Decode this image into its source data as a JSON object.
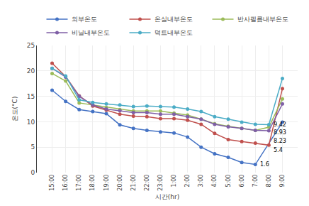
{
  "chart_data": {
    "type": "line",
    "categories": [
      "15:00",
      "16:00",
      "17:00",
      "18:00",
      "19:00",
      "20:00",
      "21:00",
      "22:00",
      "23:00",
      "1:00",
      "2:00",
      "3:00",
      "4:00",
      "5:00",
      "6:00",
      "7:00",
      "8:00",
      "9:00"
    ],
    "series": [
      {
        "name": "외부온도",
        "color": "#4472C4",
        "values": [
          16.2,
          14.0,
          12.4,
          12.0,
          11.6,
          9.4,
          8.7,
          8.3,
          8.0,
          7.8,
          7.0,
          5.0,
          3.7,
          3.0,
          2.0,
          1.6,
          null,
          9.9
        ]
      },
      {
        "name": "온실내부온도",
        "color": "#C0504D",
        "values": [
          21.5,
          18.9,
          15.1,
          13.1,
          12.3,
          11.5,
          11.1,
          11.0,
          10.6,
          10.6,
          10.3,
          9.5,
          7.7,
          6.5,
          6.1,
          5.8,
          5.4,
          16.5
        ]
      },
      {
        "name": "반사필름내부온도",
        "color": "#9BBB59",
        "values": [
          19.5,
          18.0,
          13.7,
          13.3,
          12.8,
          12.4,
          12.1,
          12.1,
          12.1,
          11.7,
          11.3,
          10.5,
          9.6,
          9.1,
          8.7,
          8.3,
          8.93,
          14.5
        ]
      },
      {
        "name": "비닐내부온도",
        "color": "#7F5FA6",
        "values": [
          20.5,
          18.8,
          15.0,
          13.3,
          12.5,
          12.2,
          11.8,
          11.8,
          11.5,
          11.5,
          11.0,
          10.5,
          9.5,
          9.0,
          8.7,
          8.3,
          8.23,
          13.5
        ]
      },
      {
        "name": "덕트내부온도",
        "color": "#4BACC6",
        "values": [
          20.5,
          19.0,
          14.3,
          13.8,
          13.5,
          13.3,
          13.0,
          13.1,
          13.0,
          12.9,
          12.5,
          12.0,
          11.0,
          10.5,
          9.9,
          9.5,
          9.42,
          18.5
        ]
      }
    ],
    "annotations": [
      {
        "text": "9.42",
        "x": "8:00",
        "y": 9.42
      },
      {
        "text": "8.93",
        "x": "8:00",
        "y": 8.93
      },
      {
        "text": "8.23",
        "x": "8:00",
        "y": 8.23
      },
      {
        "text": "5.4",
        "x": "8:00",
        "y": 5.4
      },
      {
        "text": "1.6",
        "x": "7:00",
        "y": 1.6
      }
    ],
    "xlabel": "시간(hr)",
    "ylabel": "온도(°C)",
    "ylim": [
      0,
      25
    ],
    "yticks": [
      0,
      5,
      10,
      15,
      20,
      25
    ],
    "grid": true,
    "legend": "top",
    "marker": "circle"
  }
}
